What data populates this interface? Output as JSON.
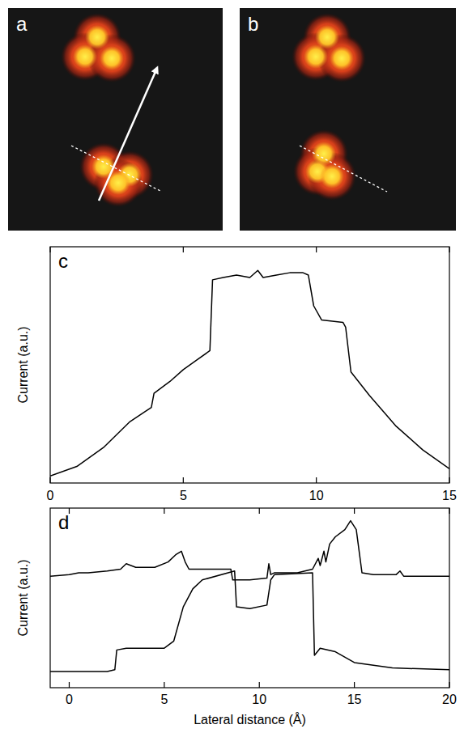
{
  "chart_data": [
    {
      "type": "image",
      "panel_label": "a"
    },
    {
      "type": "image",
      "panel_label": "b"
    },
    {
      "type": "line",
      "panel_label": "c",
      "y_label": "Current (a.u.)",
      "color": "#000000",
      "x": [
        0,
        1,
        2,
        3,
        3.8,
        3.9,
        4.5,
        5,
        5.5,
        6,
        6.1,
        6.5,
        7,
        7.5,
        7.8,
        8,
        8.5,
        9,
        9.5,
        9.7,
        9.9,
        10.2,
        11,
        11.1,
        11.3,
        12,
        13,
        14,
        15
      ],
      "values": [
        0.03,
        0.07,
        0.15,
        0.26,
        0.32,
        0.38,
        0.43,
        0.48,
        0.52,
        0.56,
        0.86,
        0.87,
        0.88,
        0.87,
        0.9,
        0.87,
        0.88,
        0.89,
        0.89,
        0.88,
        0.75,
        0.69,
        0.68,
        0.66,
        0.47,
        0.37,
        0.24,
        0.14,
        0.06
      ],
      "xlim": [
        0,
        15
      ],
      "xticks": [
        0,
        5,
        10,
        15
      ],
      "ylim": [
        0,
        1
      ],
      "tick_labels": "x"
    },
    {
      "type": "line",
      "panel_label": "d",
      "x_label": "Lateral distance (Å)",
      "y_label": "Current (a.u.)",
      "series": [
        {
          "color": "#000000",
          "x": [
            -1,
            0,
            0.5,
            1,
            2,
            2.7,
            3,
            3.5,
            4.5,
            5.2,
            5.6,
            5.9,
            6.1,
            6.3,
            8.5,
            8.6,
            9.5,
            10.4,
            10.5,
            10.6,
            10.8,
            12,
            12.8,
            13.1,
            13.2,
            13.4,
            13.5,
            13.7,
            14,
            14.5,
            14.8,
            15.1,
            15.4,
            16,
            17.2,
            17.4,
            17.6,
            20
          ],
          "values": [
            0.62,
            0.63,
            0.64,
            0.64,
            0.65,
            0.66,
            0.69,
            0.67,
            0.67,
            0.7,
            0.74,
            0.76,
            0.7,
            0.66,
            0.66,
            0.6,
            0.6,
            0.61,
            0.69,
            0.63,
            0.64,
            0.64,
            0.66,
            0.72,
            0.68,
            0.76,
            0.7,
            0.8,
            0.84,
            0.88,
            0.93,
            0.88,
            0.64,
            0.63,
            0.63,
            0.65,
            0.62,
            0.62
          ]
        },
        {
          "color": "#000000",
          "x": [
            -1,
            2,
            2.4,
            2.5,
            3,
            5,
            5.5,
            6,
            6.5,
            7,
            8.7,
            8.8,
            9.5,
            10.4,
            10.6,
            10.8,
            12.8,
            12.9,
            13.2,
            14,
            15,
            17,
            20
          ],
          "values": [
            0.09,
            0.09,
            0.1,
            0.21,
            0.22,
            0.22,
            0.26,
            0.45,
            0.55,
            0.6,
            0.65,
            0.45,
            0.44,
            0.46,
            0.6,
            0.63,
            0.64,
            0.18,
            0.22,
            0.2,
            0.14,
            0.11,
            0.1
          ]
        }
      ],
      "xlim": [
        -1,
        20
      ],
      "xticks": [
        0,
        5,
        10,
        15,
        20
      ],
      "ylim": [
        0,
        1
      ],
      "tick_labels": "x"
    }
  ]
}
